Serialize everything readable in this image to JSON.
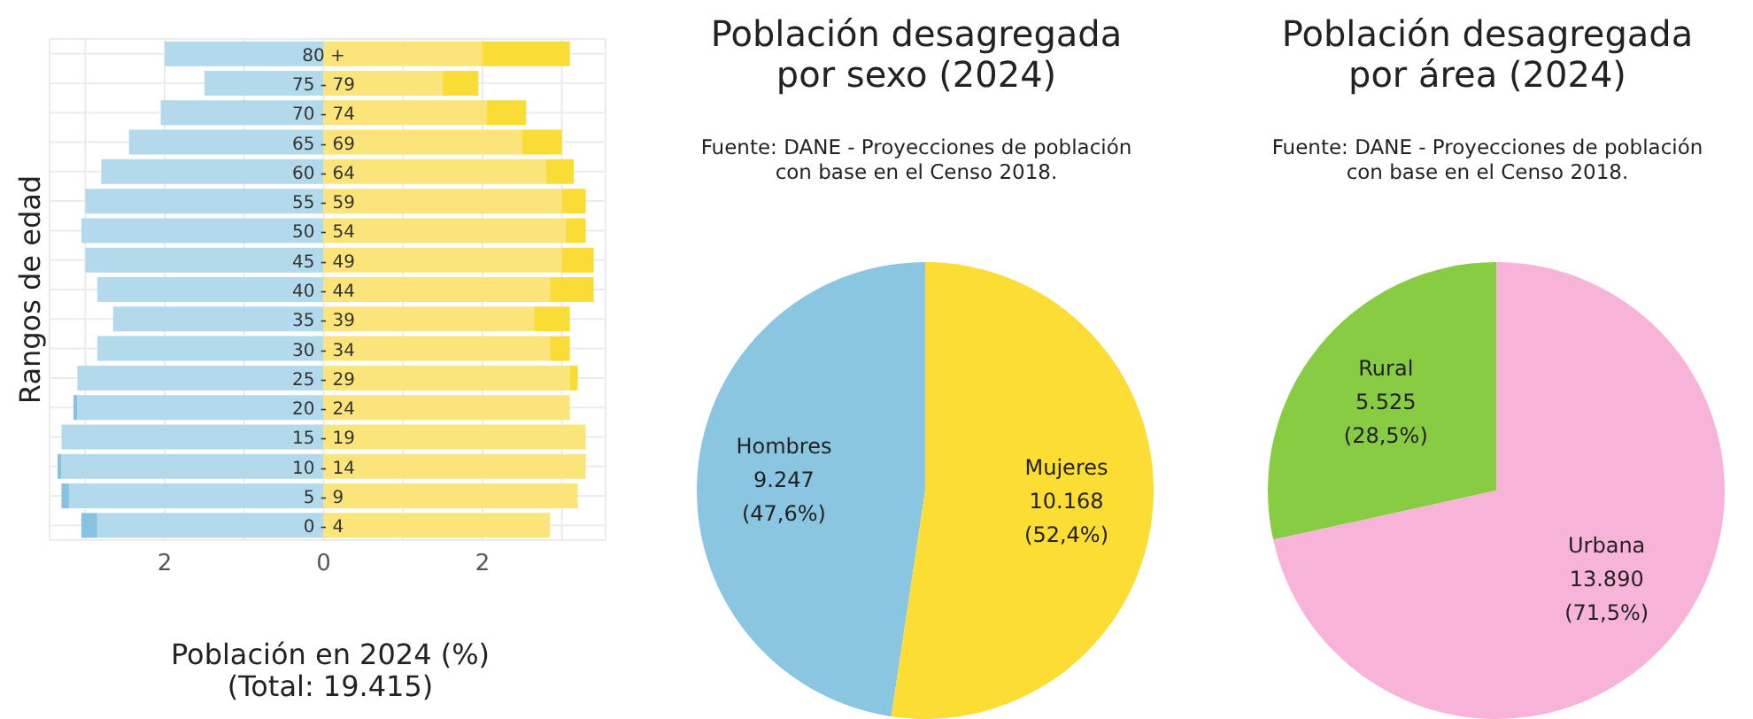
{
  "chart_data": [
    {
      "type": "bar",
      "orientation": "horizontal",
      "stacked": true,
      "xlabel": "Población en 2024 (%)\n(Total: 19.415)",
      "ylabel": "Rangos de edad",
      "categories": [
        "80 +",
        "75 - 79",
        "70 - 74",
        "65 - 69",
        "60 - 64",
        "55 - 59",
        "50 - 54",
        "45 - 49",
        "40 - 44",
        "35 - 39",
        "30 - 34",
        "25 - 29",
        "20 - 24",
        "15 - 19",
        "10 - 14",
        "5 - 9",
        "0 - 4"
      ],
      "series": [
        {
          "color": "#b3d9ec",
          "values": [
            -2,
            -1.5,
            -2.05,
            -2.45,
            -2.8,
            -3,
            -3.05,
            -3,
            -2.85,
            -2.65,
            -2.85,
            -3.1,
            -3.1,
            -3.3,
            -3.3,
            -3.2,
            -2.85
          ]
        },
        {
          "color": "#87c3e0",
          "values": [
            null,
            null,
            null,
            null,
            null,
            null,
            null,
            null,
            null,
            null,
            null,
            null,
            -0.05,
            null,
            -0.05,
            -0.1,
            -0.2
          ]
        },
        {
          "color": "#fbe57a",
          "values": [
            2,
            1.5,
            2.05,
            2.5,
            2.8,
            3,
            3.05,
            3,
            2.85,
            2.65,
            2.85,
            3.1,
            3.1,
            3.3,
            3.3,
            3.2,
            2.85
          ]
        },
        {
          "color": "#fadc36",
          "values": [
            1.1,
            0.45,
            0.5,
            0.5,
            0.35,
            0.3,
            0.25,
            0.4,
            0.55,
            0.45,
            0.25,
            0.1,
            null,
            null,
            null,
            null,
            null
          ]
        }
      ],
      "xlim": [
        -3.45,
        3.55
      ],
      "xticks": [
        {
          "value": -3,
          "label": null
        },
        {
          "value": -2,
          "label": "2"
        },
        {
          "value": -1,
          "label": null
        },
        0,
        {
          "value": 1,
          "label": null
        },
        2,
        {
          "value": 3,
          "label": null
        }
      ],
      "grid": true,
      "legend": false
    },
    {
      "type": "pie",
      "title": "Población desagregada\npor sexo (2024)",
      "subtitle": "Fuente: DANE - Proyecciones de población\ncon base en el Censo 2018.",
      "categories": [
        "Hombres",
        "Mujeres"
      ],
      "values": [
        9247,
        10168
      ],
      "colors": [
        "#8ac6e2",
        "#fbdd33"
      ],
      "value_labels": [
        "9.247\n(47,6%)",
        "10.168\n(52,4%)"
      ],
      "legend": false
    },
    {
      "type": "pie",
      "title": "Población desagregada\npor área (2024)",
      "subtitle": "Fuente: DANE - Proyecciones de población\ncon base en el Censo 2018.",
      "categories": [
        "Rural",
        "Urbana"
      ],
      "values": [
        5525,
        13890
      ],
      "colors": [
        "#88cc44",
        "#f8b4d8"
      ],
      "value_labels": [
        "5.525\n(28,5%)",
        "13.890\n(71,5%)"
      ],
      "legend": false
    }
  ]
}
